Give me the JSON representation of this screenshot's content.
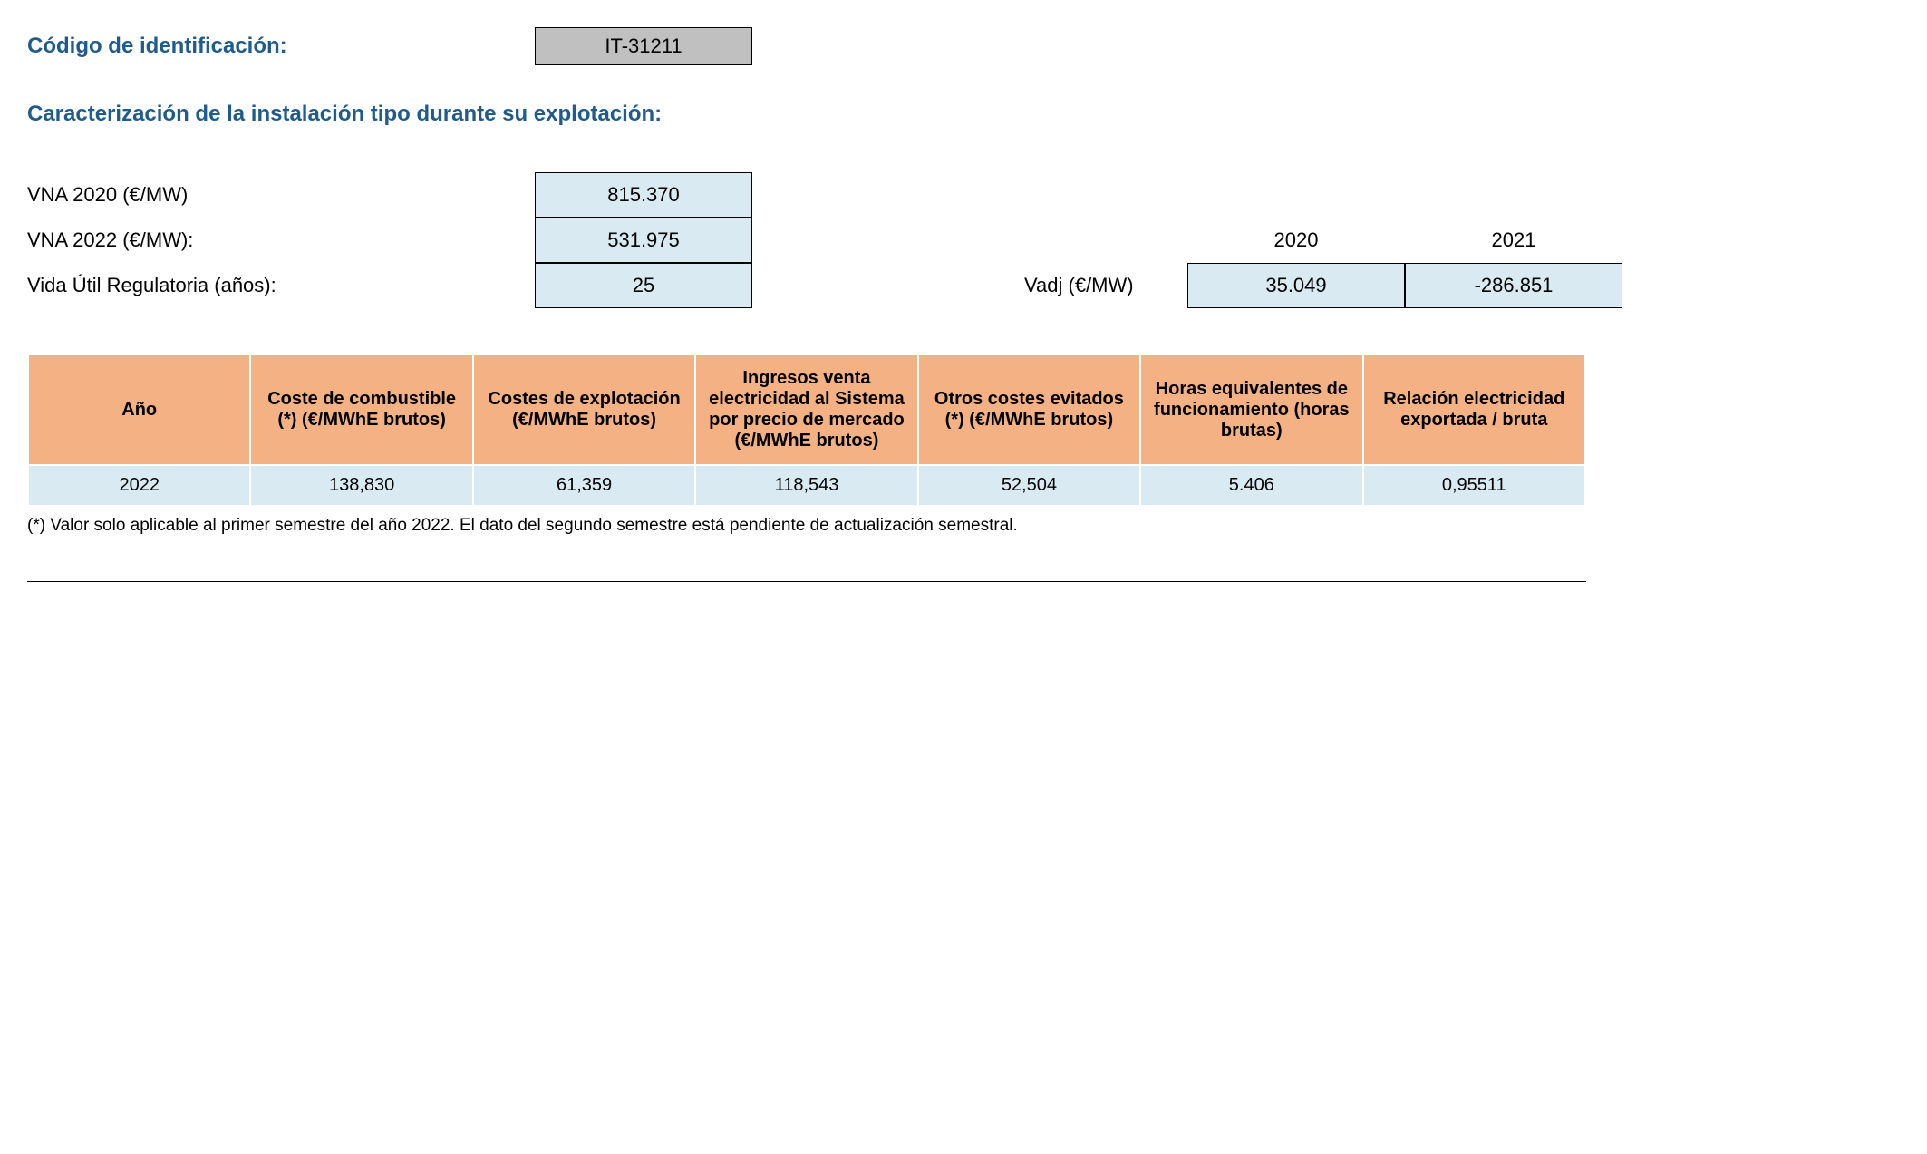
{
  "header": {
    "id_label": "Código de identificación:",
    "id_value": "IT-31211",
    "subtitle": "Caracterización de la instalación tipo durante su explotación:"
  },
  "params": {
    "vna2020_label": "VNA 2020 (€/MW)",
    "vna2020_value": "815.370",
    "vna2022_label": "VNA 2022 (€/MW):",
    "vna2022_value": "531.975",
    "vida_label": "Vida Útil Regulatoria (años):",
    "vida_value": "25"
  },
  "vadj": {
    "label": "Vadj (€/MW)",
    "year1": "2020",
    "year2": "2021",
    "value1": "35.049",
    "value2": "-286.851"
  },
  "table": {
    "columns": [
      "Año",
      "Coste de combustible (*) (€/MWhE brutos)",
      "Costes de explotación (€/MWhE brutos)",
      "Ingresos venta electricidad al Sistema por precio de mercado (€/MWhE brutos)",
      "Otros costes evitados (*) (€/MWhE brutos)",
      "Horas equivalentes de funcionamiento (horas brutas)",
      "Relación electricidad exportada / bruta"
    ],
    "rows": [
      [
        "2022",
        "138,830",
        "61,359",
        "118,543",
        "52,504",
        "5.406",
        "0,95511"
      ]
    ]
  },
  "footnote": "(*) Valor solo aplicable al primer semestre del año 2022. El dato del segundo semestre está pendiente de actualización semestral.",
  "colors": {
    "heading_color": "#1f5c8b",
    "code_box_bg": "#c0c0c0",
    "value_box_bg": "#d9eaf2",
    "table_header_bg": "#f4b183",
    "table_cell_bg": "#d9eaf2",
    "background": "#ffffff"
  }
}
